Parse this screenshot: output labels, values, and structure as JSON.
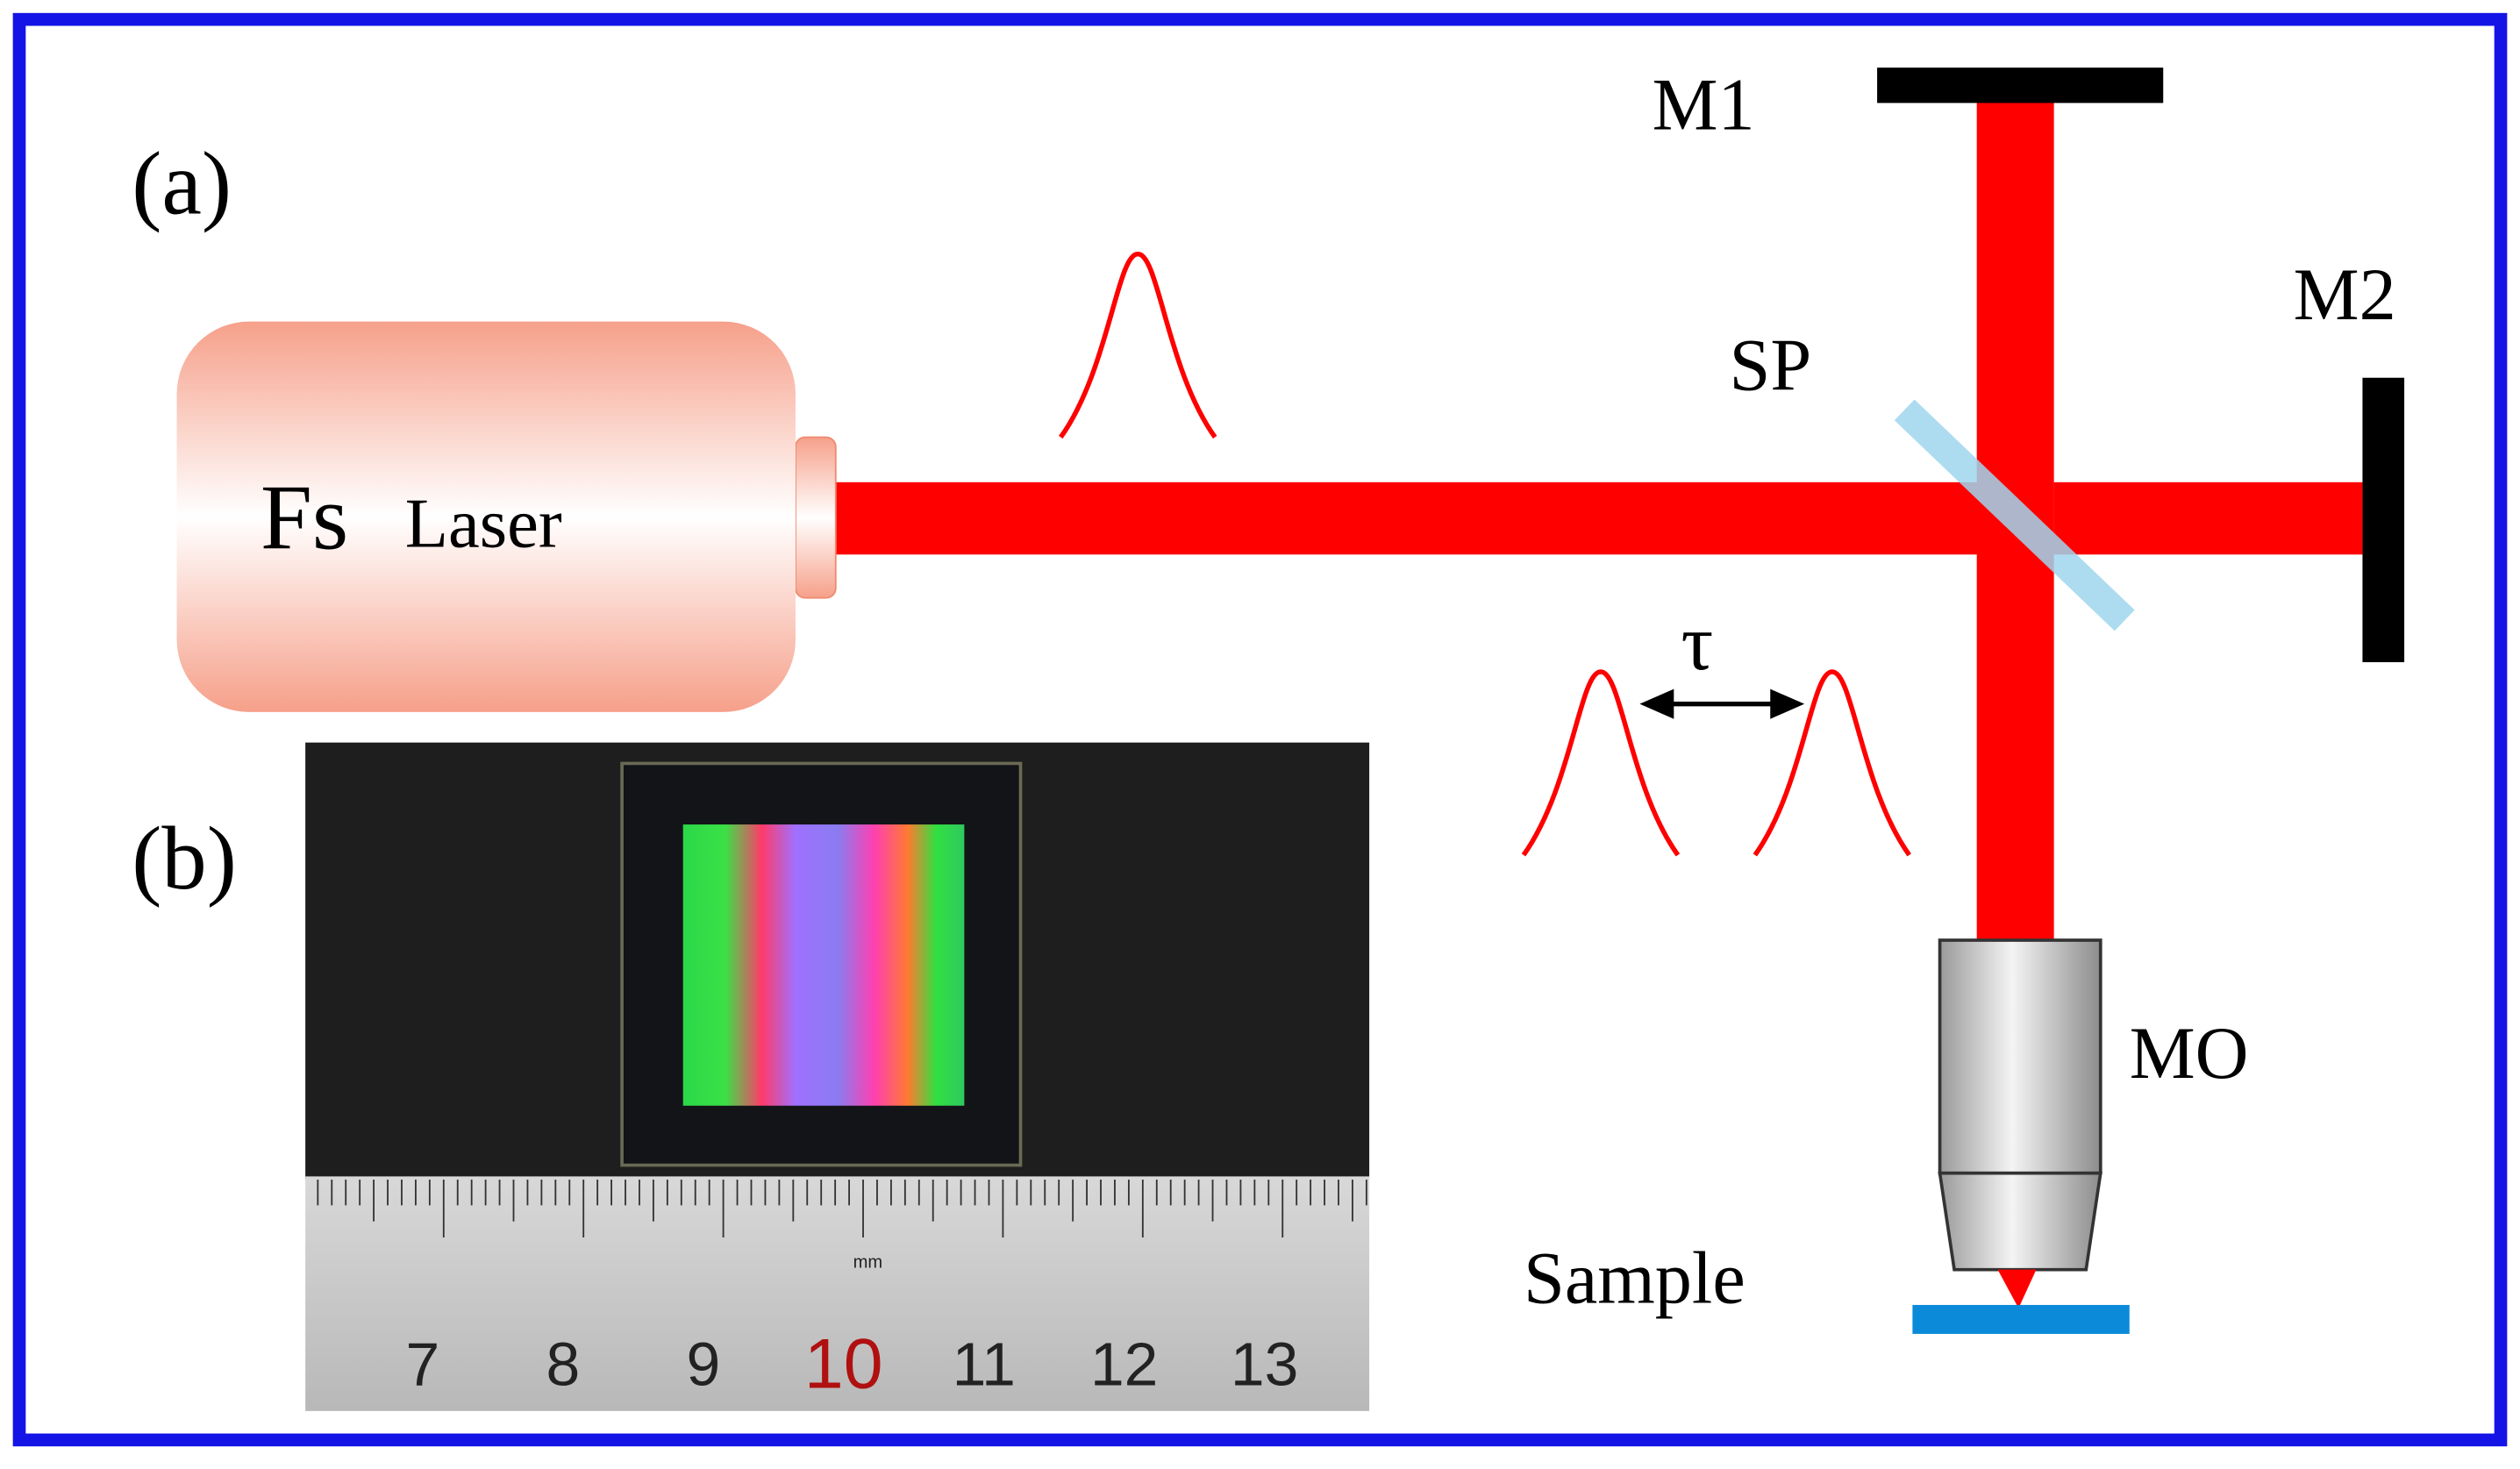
{
  "panels": {
    "a": "(a)",
    "b": "(b)"
  },
  "laser": {
    "prefix": "Fs",
    "label": "Laser"
  },
  "components": {
    "m1": "M1",
    "m2": "M2",
    "sp": "SP",
    "mo": "MO",
    "sample": "Sample",
    "delay": "τ"
  },
  "ruler": {
    "unit": "mm",
    "numbers": [
      "7",
      "8",
      "9",
      "10",
      "11",
      "12",
      "13"
    ]
  }
}
